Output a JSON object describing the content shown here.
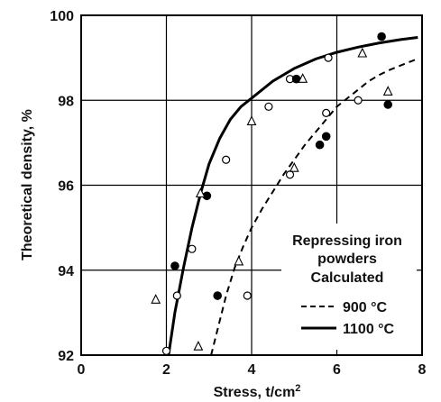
{
  "chart_data": {
    "type": "scatter",
    "title": "",
    "xlabel": "Stress, t/cm",
    "xlabel_sup": "2",
    "ylabel": "Theoretical density, %",
    "xlim": [
      0,
      8
    ],
    "ylim": [
      92,
      100
    ],
    "xticks": [
      "0",
      "2",
      "4",
      "6",
      "8"
    ],
    "yticks": [
      "92",
      "94",
      "96",
      "98",
      "100"
    ],
    "grid": true,
    "legend": {
      "placement": "bottom-right",
      "title_lines": [
        "Repressing iron",
        "powders",
        "Calculated"
      ],
      "entries": [
        {
          "label": "900 °C",
          "style": "dashed"
        },
        {
          "label": "1100 °C",
          "style": "solid"
        }
      ]
    },
    "series": [
      {
        "marker": "open-circle",
        "points": [
          [
            2.0,
            92.1
          ],
          [
            2.25,
            93.4
          ],
          [
            2.6,
            94.5
          ],
          [
            3.4,
            96.6
          ],
          [
            3.9,
            93.4
          ],
          [
            4.4,
            97.85
          ],
          [
            4.9,
            96.25
          ],
          [
            4.9,
            98.5
          ],
          [
            5.75,
            97.7
          ],
          [
            5.8,
            99.0
          ],
          [
            6.5,
            98.0
          ]
        ]
      },
      {
        "marker": "filled-circle",
        "points": [
          [
            2.2,
            94.1
          ],
          [
            2.95,
            95.75
          ],
          [
            3.2,
            93.4
          ],
          [
            5.05,
            98.5
          ],
          [
            5.6,
            96.95
          ],
          [
            5.75,
            97.15
          ],
          [
            7.05,
            99.5
          ],
          [
            7.2,
            97.9
          ]
        ]
      },
      {
        "marker": "open-triangle",
        "points": [
          [
            1.75,
            93.3
          ],
          [
            2.75,
            92.2
          ],
          [
            2.8,
            95.8
          ],
          [
            3.7,
            94.2
          ],
          [
            4.0,
            97.5
          ],
          [
            5.0,
            96.4
          ],
          [
            5.2,
            98.5
          ],
          [
            6.6,
            99.1
          ],
          [
            7.2,
            98.2
          ]
        ]
      },
      {
        "name": "900 °C",
        "style": "dashed",
        "curve": [
          [
            3.05,
            92.0
          ],
          [
            3.2,
            92.6
          ],
          [
            3.4,
            93.4
          ],
          [
            3.6,
            94.05
          ],
          [
            3.8,
            94.55
          ],
          [
            4.0,
            95.0
          ],
          [
            4.25,
            95.45
          ],
          [
            4.5,
            95.85
          ],
          [
            4.75,
            96.25
          ],
          [
            5.0,
            96.6
          ],
          [
            5.25,
            96.95
          ],
          [
            5.5,
            97.25
          ],
          [
            5.75,
            97.55
          ],
          [
            6.0,
            97.85
          ],
          [
            6.25,
            98.05
          ],
          [
            6.5,
            98.25
          ],
          [
            6.75,
            98.45
          ],
          [
            7.0,
            98.6
          ],
          [
            7.25,
            98.72
          ],
          [
            7.5,
            98.82
          ],
          [
            7.75,
            98.92
          ],
          [
            7.9,
            98.98
          ]
        ]
      },
      {
        "name": "1100 °C",
        "style": "solid",
        "curve": [
          [
            2.05,
            92.0
          ],
          [
            2.2,
            93.0
          ],
          [
            2.4,
            94.05
          ],
          [
            2.6,
            95.0
          ],
          [
            2.8,
            95.8
          ],
          [
            3.0,
            96.5
          ],
          [
            3.25,
            97.1
          ],
          [
            3.5,
            97.55
          ],
          [
            3.75,
            97.85
          ],
          [
            4.0,
            98.05
          ],
          [
            4.5,
            98.45
          ],
          [
            5.0,
            98.75
          ],
          [
            5.5,
            98.97
          ],
          [
            6.0,
            99.13
          ],
          [
            6.5,
            99.25
          ],
          [
            7.0,
            99.35
          ],
          [
            7.5,
            99.43
          ],
          [
            7.9,
            99.48
          ]
        ]
      }
    ]
  }
}
